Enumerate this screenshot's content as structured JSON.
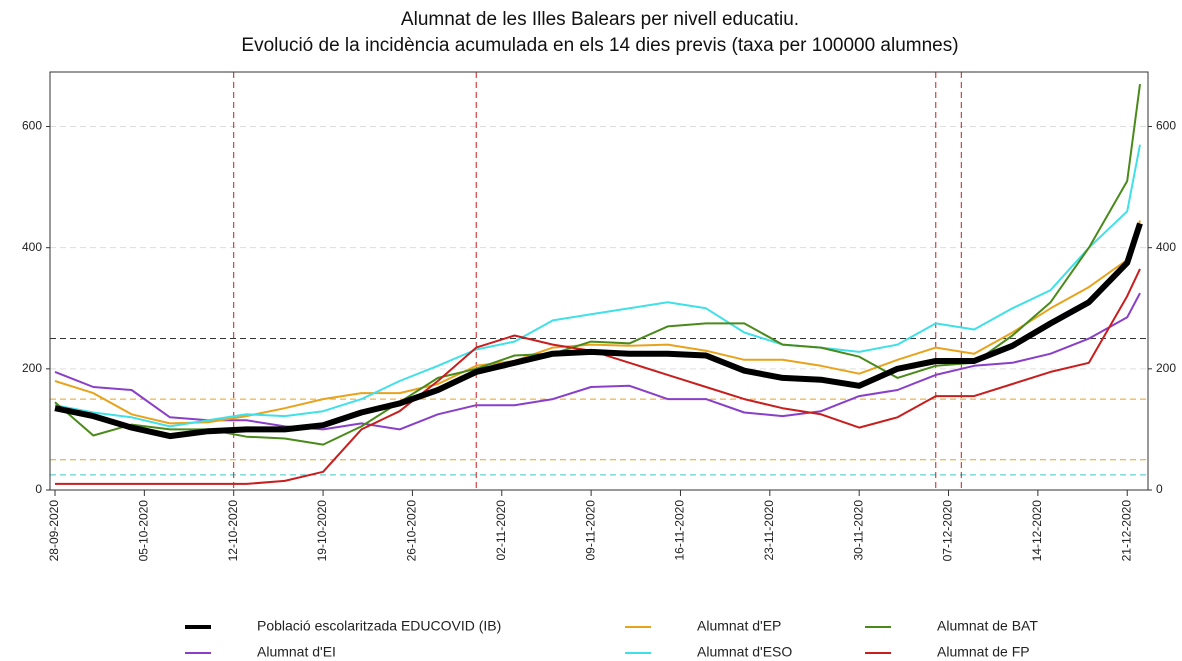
{
  "chart_data": {
    "type": "line",
    "title": [
      "Alumnat de les Illes Balears per nivell educatiu.",
      "Evolució de la incidència acumulada en els 14 dies previs (taxa per 100000 alumnes)"
    ],
    "x": [
      "28-09-2020",
      "01-10-2020",
      "04-10-2020",
      "07-10-2020",
      "10-10-2020",
      "13-10-2020",
      "16-10-2020",
      "19-10-2020",
      "22-10-2020",
      "25-10-2020",
      "28-10-2020",
      "31-10-2020",
      "03-11-2020",
      "06-11-2020",
      "09-11-2020",
      "12-11-2020",
      "15-11-2020",
      "18-11-2020",
      "21-11-2020",
      "24-11-2020",
      "27-11-2020",
      "30-11-2020",
      "03-12-2020",
      "06-12-2020",
      "09-12-2020",
      "12-12-2020",
      "15-12-2020",
      "18-12-2020",
      "21-12-2020",
      "22-12-2020"
    ],
    "xticks": [
      "28-09-2020",
      "05-10-2020",
      "12-10-2020",
      "19-10-2020",
      "26-10-2020",
      "02-11-2020",
      "09-11-2020",
      "16-11-2020",
      "23-11-2020",
      "30-11-2020",
      "07-12-2020",
      "14-12-2020",
      "21-12-2020"
    ],
    "ylim": [
      0,
      690
    ],
    "yticks": [
      0,
      200,
      400,
      600
    ],
    "grid": true,
    "hlines": [
      {
        "value": 250,
        "color": "#333333"
      },
      {
        "value": 150,
        "color": "#e8a31c"
      },
      {
        "value": 50,
        "color": "#e8a31c"
      },
      {
        "value": 25,
        "color": "#40c8c8"
      }
    ],
    "vlines": {
      "color": "#c81e1e",
      "x": [
        "12-10-2020",
        "31-10-2020",
        "06-12-2020",
        "08-12-2020"
      ]
    },
    "series": [
      {
        "name": "Població escolaritzada EDUCOVID (IB)",
        "color": "#000000",
        "width": 6,
        "values": [
          135,
          122,
          103,
          89,
          97,
          100,
          100,
          107,
          128,
          143,
          165,
          195,
          210,
          225,
          228,
          225,
          225,
          222,
          197,
          185,
          182,
          172,
          200,
          213,
          213,
          238,
          275,
          310,
          375,
          440
        ]
      },
      {
        "name": "Alumnat d'EI",
        "color": "#8a3fc8",
        "width": 2,
        "values": [
          195,
          170,
          165,
          120,
          115,
          115,
          105,
          100,
          110,
          100,
          125,
          140,
          140,
          150,
          170,
          172,
          150,
          150,
          128,
          122,
          130,
          155,
          165,
          190,
          205,
          210,
          225,
          250,
          285,
          325
        ]
      },
      {
        "name": "Alumnat d'EP",
        "color": "#e8a31c",
        "width": 2,
        "values": [
          180,
          160,
          125,
          110,
          112,
          122,
          135,
          150,
          160,
          160,
          175,
          205,
          213,
          235,
          240,
          238,
          240,
          230,
          215,
          215,
          205,
          192,
          215,
          235,
          225,
          260,
          300,
          335,
          380,
          445
        ]
      },
      {
        "name": "Alumnat d'ESO",
        "color": "#40e0e8",
        "width": 2,
        "values": [
          140,
          128,
          120,
          105,
          115,
          125,
          122,
          130,
          150,
          180,
          205,
          232,
          245,
          280,
          290,
          300,
          310,
          300,
          260,
          240,
          235,
          228,
          240,
          275,
          265,
          300,
          330,
          400,
          460,
          570
        ]
      },
      {
        "name": "Alumnat de BAT",
        "color": "#4a8a1a",
        "width": 2,
        "values": [
          145,
          90,
          108,
          100,
          100,
          88,
          85,
          75,
          105,
          145,
          185,
          200,
          222,
          225,
          245,
          242,
          270,
          275,
          275,
          240,
          235,
          220,
          185,
          205,
          210,
          255,
          310,
          400,
          510,
          670
        ]
      },
      {
        "name": "Alumnat de FP",
        "color": "#c81e1e",
        "width": 2,
        "values": [
          10,
          10,
          10,
          10,
          10,
          10,
          15,
          30,
          100,
          130,
          180,
          235,
          255,
          240,
          230,
          210,
          190,
          170,
          150,
          135,
          125,
          103,
          120,
          155,
          155,
          175,
          195,
          210,
          320,
          365
        ]
      }
    ]
  }
}
